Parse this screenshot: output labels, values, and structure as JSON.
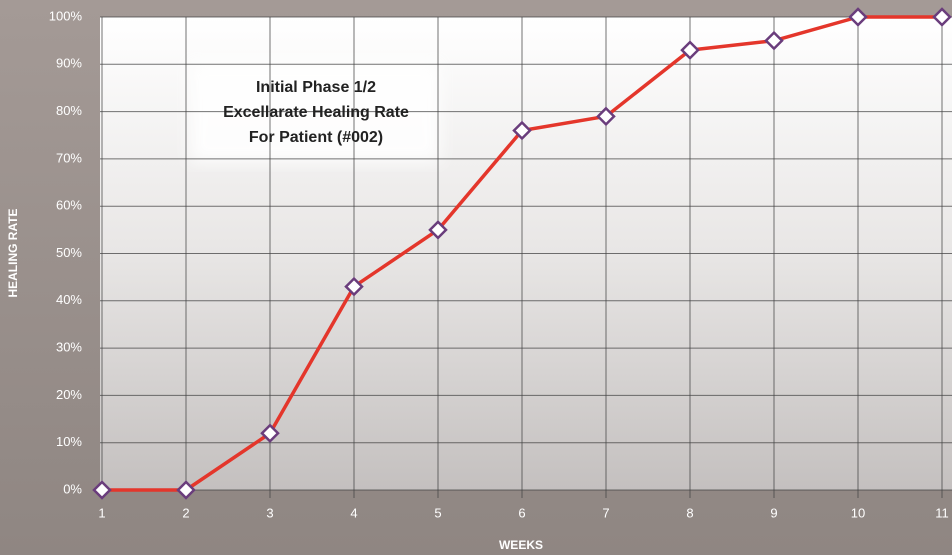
{
  "chart_data": {
    "type": "line",
    "title": [
      "Initial Phase 1/2",
      "Excellarate Healing Rate",
      "For Patient (#002)"
    ],
    "x_label": "WEEKS",
    "y_label": "HEALING RATE",
    "x": [
      1,
      2,
      3,
      4,
      5,
      6,
      7,
      8,
      9,
      10,
      11
    ],
    "values": [
      0,
      0,
      12,
      43,
      55,
      76,
      79,
      93,
      95,
      100,
      100
    ],
    "color": "#e4362b",
    "marker_color": "#6a3d7c",
    "xlim": [
      1,
      11
    ],
    "xticks": [
      1,
      2,
      3,
      4,
      5,
      6,
      7,
      8,
      9,
      10,
      11
    ],
    "ylim": [
      0,
      100
    ],
    "yticks": [
      {
        "value": 0,
        "label": "0%"
      },
      {
        "value": 10,
        "label": "10%"
      },
      {
        "value": 20,
        "label": "20%"
      },
      {
        "value": 30,
        "label": "30%"
      },
      {
        "value": 40,
        "label": "40%"
      },
      {
        "value": 50,
        "label": "50%"
      },
      {
        "value": 60,
        "label": "60%"
      },
      {
        "value": 70,
        "label": "70%"
      },
      {
        "value": 80,
        "label": "80%"
      },
      {
        "value": 90,
        "label": "90%"
      },
      {
        "value": 100,
        "label": "100%"
      }
    ],
    "grid": true
  }
}
